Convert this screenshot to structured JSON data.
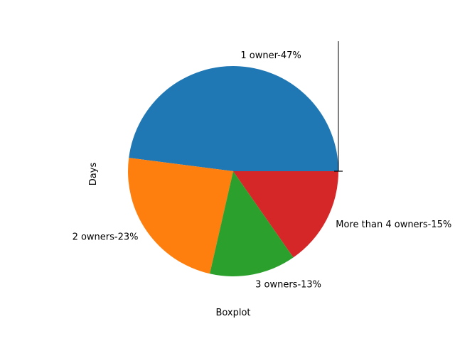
{
  "chart_data": {
    "type": "pie",
    "title": "",
    "xlabel": "Boxplot",
    "ylabel": "Days",
    "slices": [
      {
        "label": "1 owner-47%",
        "value": 47,
        "color": "#1f77b4"
      },
      {
        "label": "2 owners-23%",
        "value": 23,
        "color": "#ff7f0e"
      },
      {
        "label": "3 owners-13%",
        "value": 13,
        "color": "#2ca02c"
      },
      {
        "label": "More than 4 owners-15%",
        "value": 15,
        "color": "#d62728"
      }
    ],
    "start_angle_deg": 0,
    "direction": "counterclockwise"
  }
}
